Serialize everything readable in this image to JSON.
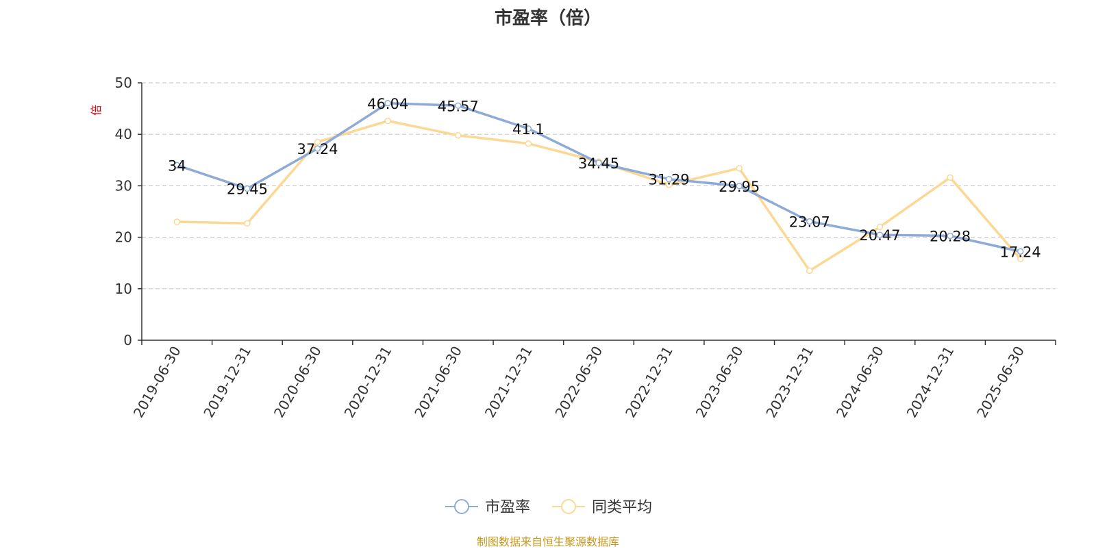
{
  "footer": "制图数据来自恒生聚源数据库",
  "chart_data": {
    "type": "line",
    "title": "市盈率（倍）",
    "ylabel": "倍",
    "xlabel": "",
    "ylim": [
      0,
      50
    ],
    "yticks": [
      0,
      10,
      20,
      30,
      40,
      50
    ],
    "grid": true,
    "legend_position": "bottom",
    "categories": [
      "2019-06-30",
      "2019-12-31",
      "2020-06-30",
      "2020-12-31",
      "2021-06-30",
      "2021-12-31",
      "2022-06-30",
      "2022-12-31",
      "2023-06-30",
      "2023-12-31",
      "2024-06-30",
      "2024-12-31",
      "2025-06-30"
    ],
    "series": [
      {
        "name": "市盈率",
        "color": "#8eaad8",
        "values": [
          34,
          29.45,
          37.24,
          46.04,
          45.57,
          41.1,
          34.45,
          31.29,
          29.95,
          23.07,
          20.47,
          20.28,
          17.24
        ],
        "labels": [
          "34",
          "29.45",
          "37.24",
          "46.04",
          "45.57",
          "41.1",
          "34.45",
          "31.29",
          "29.95",
          "23.07",
          "20.47",
          "20.28",
          "17.24"
        ]
      },
      {
        "name": "同类平均",
        "color": "#fbd893",
        "values": [
          23,
          22.7,
          38.5,
          42.6,
          39.8,
          38.2,
          34.7,
          30.2,
          33.4,
          13.5,
          22,
          31.6,
          15.8
        ]
      }
    ]
  }
}
